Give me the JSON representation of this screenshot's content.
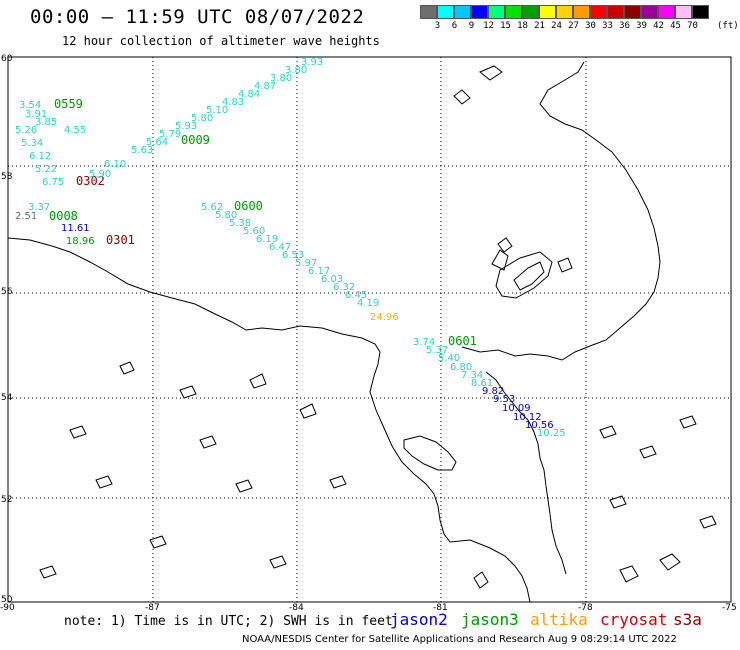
{
  "header": {
    "title": "00:00 — 11:59 UTC 08/07/2022",
    "subtitle": "12 hour collection of altimeter wave heights"
  },
  "colorbar": {
    "unit": "(ft)",
    "colors": [
      "#6e6e6e",
      "#00ffff",
      "#00c8ff",
      "#0000ff",
      "#00ff7f",
      "#00e400",
      "#00a000",
      "#ffff00",
      "#ffd200",
      "#ff9a00",
      "#ff0000",
      "#c80000",
      "#8b0000",
      "#9b0096",
      "#ff00ff",
      "#ffbef0",
      "#000000"
    ],
    "labels": [
      "3",
      "6",
      "9",
      "12",
      "15",
      "18",
      "21",
      "24",
      "27",
      "30",
      "33",
      "36",
      "39",
      "42",
      "45",
      "70"
    ]
  },
  "axes": {
    "lat_ticks": [
      "60",
      "58",
      "56",
      "54",
      "52",
      "50"
    ],
    "lon_ticks": [
      "-90",
      "-87",
      "-84",
      "-81",
      "-78",
      "-75"
    ]
  },
  "passes": [
    {
      "label": "0559",
      "color": "#009600"
    },
    {
      "label": "0009",
      "color": "#009600"
    },
    {
      "label": "0302",
      "color": "#8b0000"
    },
    {
      "label": "0008",
      "color": "#009600"
    },
    {
      "label": "0301",
      "color": "#8b0000"
    },
    {
      "label": "0600",
      "color": "#009600"
    },
    {
      "label": "0601",
      "color": "#009600"
    }
  ],
  "wave_heights": [
    {
      "v": "3.93"
    },
    {
      "v": "3.80"
    },
    {
      "v": "3.80"
    },
    {
      "v": "4.87"
    },
    {
      "v": "4.84"
    },
    {
      "v": "4.83"
    },
    {
      "v": "5.10"
    },
    {
      "v": "5.80"
    },
    {
      "v": "5.93"
    },
    {
      "v": "5.79"
    },
    {
      "v": "5.64"
    },
    {
      "v": "5.63"
    },
    {
      "v": "3.54"
    },
    {
      "v": "3.91"
    },
    {
      "v": "3.85"
    },
    {
      "v": "4.55"
    },
    {
      "v": "5.26"
    },
    {
      "v": "5.34"
    },
    {
      "v": "6.12"
    },
    {
      "v": "5.22"
    },
    {
      "v": "6.75"
    },
    {
      "v": "5.90"
    },
    {
      "v": "6.10"
    },
    {
      "v": "5.62"
    },
    {
      "v": "5.80"
    },
    {
      "v": "5.38"
    },
    {
      "v": "5.60"
    },
    {
      "v": "6.19"
    },
    {
      "v": "6.47"
    },
    {
      "v": "6.53"
    },
    {
      "v": "5.97"
    },
    {
      "v": "6.17"
    },
    {
      "v": "6.03"
    },
    {
      "v": "6.32"
    },
    {
      "v": "6.45"
    },
    {
      "v": "4.19"
    },
    {
      "v": "24.96"
    },
    {
      "v": "3.37"
    },
    {
      "v": "2.51"
    },
    {
      "v": "11.61"
    },
    {
      "v": "18.96"
    },
    {
      "v": "3.74"
    },
    {
      "v": "5.37"
    },
    {
      "v": "5.40"
    },
    {
      "v": "6.80"
    },
    {
      "v": "7.34"
    },
    {
      "v": "8.61"
    },
    {
      "v": "9.82"
    },
    {
      "v": "9.53"
    },
    {
      "v": "10.09"
    },
    {
      "v": "10.12"
    },
    {
      "v": "10.56"
    },
    {
      "v": "10.25"
    }
  ],
  "footer": {
    "note": "note: 1) Time is in UTC; 2) SWH is in feet",
    "satellites": [
      {
        "name": "jason2",
        "color": "#0000cc"
      },
      {
        "name": "jason3",
        "color": "#009600"
      },
      {
        "name": "altika",
        "color": "#ff9a00"
      },
      {
        "name": "cryosat",
        "color": "#cc0000"
      },
      {
        "name": "s3a",
        "color": "#8b0000"
      }
    ],
    "credit": "NOAA/NESDIS Center for Satellite Applications and Research   Aug  9 08:29:14 UTC 2022"
  }
}
